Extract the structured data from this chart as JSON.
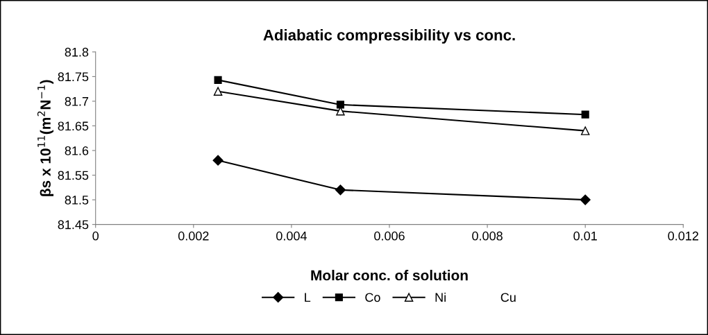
{
  "chart_data": {
    "type": "line",
    "title": "Adiabatic compressibility vs conc.",
    "xlabel": "Molar conc. of solution",
    "ylabel": "βs x 10$^{11}$(m$^{2}$N$^{−1}$)",
    "x": [
      0.0025,
      0.005,
      0.01
    ],
    "series": [
      {
        "name": "L",
        "color": "#000000",
        "marker": "diamond",
        "values": [
          81.58,
          81.52,
          81.5
        ]
      },
      {
        "name": "Co",
        "color": "#000000",
        "marker": "square",
        "values": [
          81.743,
          81.693,
          81.673
        ]
      },
      {
        "name": "Ni",
        "color": "#000000",
        "marker": "triangle",
        "values": [
          81.72,
          81.68,
          81.64
        ]
      },
      {
        "name": "Cu",
        "marker": "none",
        "values": [
          null,
          null,
          null
        ]
      }
    ],
    "xlim": [
      0,
      0.012
    ],
    "xticks": [
      0,
      0.002,
      0.004,
      0.006,
      0.008,
      0.01,
      0.012
    ],
    "ylim": [
      81.45,
      81.8
    ],
    "yticks": [
      81.45,
      81.5,
      81.55,
      81.6,
      81.65,
      81.7,
      81.75,
      81.8
    ],
    "grid": false,
    "legend": "bottom",
    "line_style": "solid"
  }
}
